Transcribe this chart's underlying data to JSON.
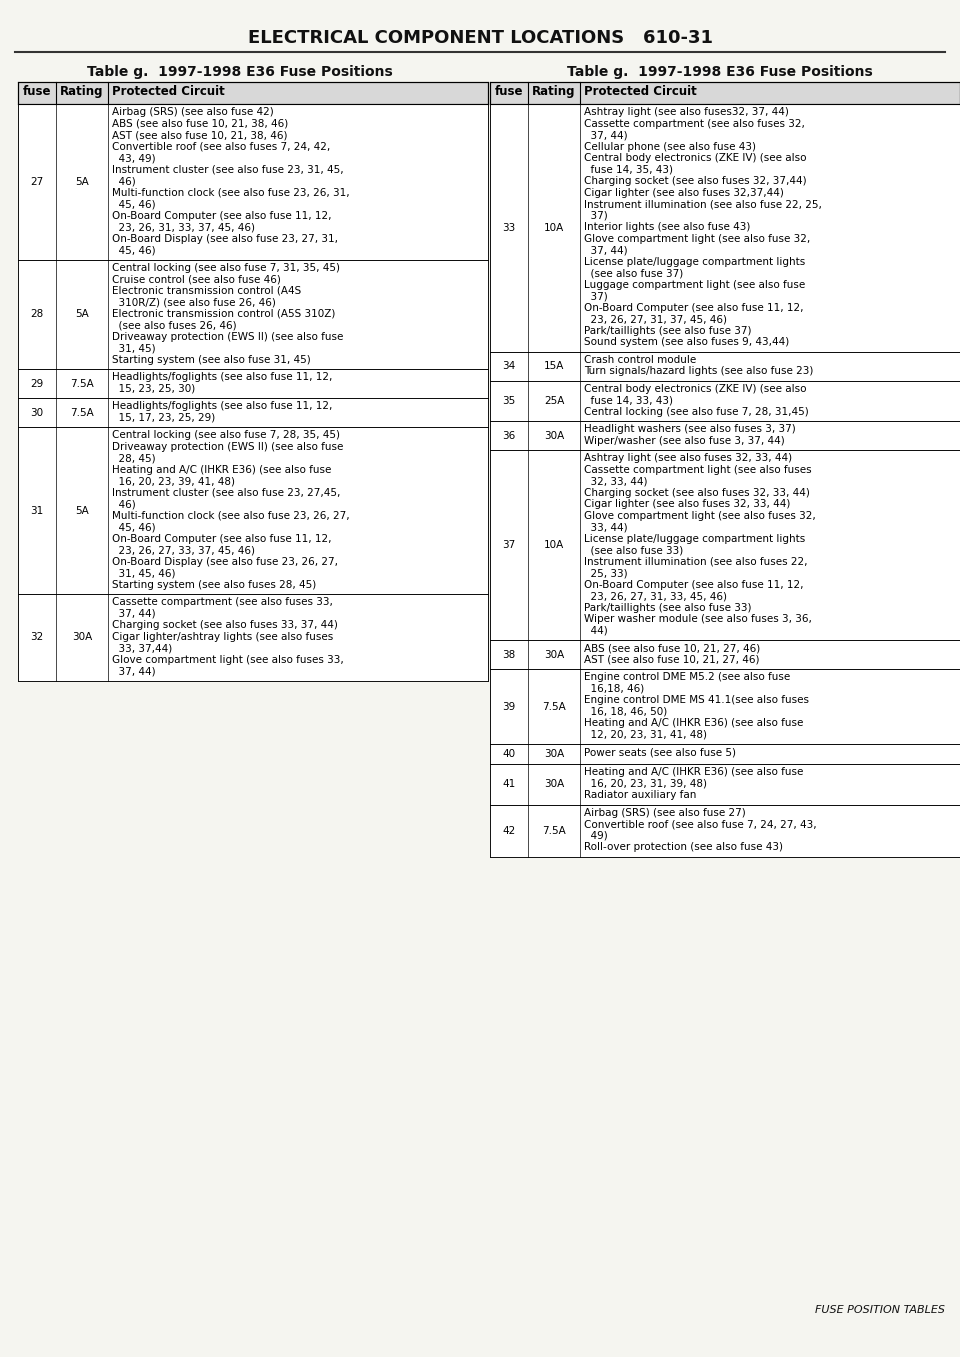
{
  "page_title": "ELECTRICAL COMPONENT LOCATIONS   610-31",
  "footer": "FUSE POSITION TABLES",
  "table_title": "Table g.  1997-1998 E36 Fuse Positions",
  "left_table": {
    "headers": [
      "fuse",
      "Rating",
      "Protected Circuit"
    ],
    "rows": [
      {
        "fuse": "27",
        "rating": "5A",
        "circuit": "Airbag (SRS) (see also fuse 42)\nABS (see also fuse 10, 21, 38, 46)\nAST (see also fuse 10, 21, 38, 46)\nConvertible roof (see also fuses 7, 24, 42,\n  43, 49)\nInstrument cluster (see also fuse 23, 31, 45,\n  46)\nMulti-function clock (see also fuse 23, 26, 31,\n  45, 46)\nOn-Board Computer (see also fuse 11, 12,\n  23, 26, 31, 33, 37, 45, 46)\nOn-Board Display (see also fuse 23, 27, 31,\n  45, 46)"
      },
      {
        "fuse": "28",
        "rating": "5A",
        "circuit": "Central locking (see also fuse 7, 31, 35, 45)\nCruise control (see also fuse 46)\nElectronic transmission control (A4S\n  310R/Z) (see also fuse 26, 46)\nElectronic transmission control (A5S 310Z)\n  (see also fuses 26, 46)\nDriveaway protection (EWS II) (see also fuse\n  31, 45)\nStarting system (see also fuse 31, 45)"
      },
      {
        "fuse": "29",
        "rating": "7.5A",
        "circuit": "Headlights/foglights (see also fuse 11, 12,\n  15, 23, 25, 30)"
      },
      {
        "fuse": "30",
        "rating": "7.5A",
        "circuit": "Headlights/foglights (see also fuse 11, 12,\n  15, 17, 23, 25, 29)"
      },
      {
        "fuse": "31",
        "rating": "5A",
        "circuit": "Central locking (see also fuse 7, 28, 35, 45)\nDriveaway protection (EWS II) (see also fuse\n  28, 45)\nHeating and A/C (IHKR E36) (see also fuse\n  16, 20, 23, 39, 41, 48)\nInstrument cluster (see also fuse 23, 27,45,\n  46)\nMulti-function clock (see also fuse 23, 26, 27,\n  45, 46)\nOn-Board Computer (see also fuse 11, 12,\n  23, 26, 27, 33, 37, 45, 46)\nOn-Board Display (see also fuse 23, 26, 27,\n  31, 45, 46)\nStarting system (see also fuses 28, 45)"
      },
      {
        "fuse": "32",
        "rating": "30A",
        "circuit": "Cassette compartment (see also fuses 33,\n  37, 44)\nCharging socket (see also fuses 33, 37, 44)\nCigar lighter/ashtray lights (see also fuses\n  33, 37,44)\nGlove compartment light (see also fuses 33,\n  37, 44)"
      }
    ]
  },
  "right_table": {
    "headers": [
      "fuse",
      "Rating",
      "Protected Circuit"
    ],
    "rows": [
      {
        "fuse": "33",
        "rating": "10A",
        "circuit": "Ashtray light (see also fuses32, 37, 44)\nCassette compartment (see also fuses 32,\n  37, 44)\nCellular phone (see also fuse 43)\nCentral body electronics (ZKE IV) (see also\n  fuse 14, 35, 43)\nCharging socket (see also fuses 32, 37,44)\nCigar lighter (see also fuses 32,37,44)\nInstrument illumination (see also fuse 22, 25,\n  37)\nInterior lights (see also fuse 43)\nGlove compartment light (see also fuse 32,\n  37, 44)\nLicense plate/luggage compartment lights\n  (see also fuse 37)\nLuggage compartment light (see also fuse\n  37)\nOn-Board Computer (see also fuse 11, 12,\n  23, 26, 27, 31, 37, 45, 46)\nPark/taillights (see also fuse 37)\nSound system (see also fuses 9, 43,44)"
      },
      {
        "fuse": "34",
        "rating": "15A",
        "circuit": "Crash control module\nTurn signals/hazard lights (see also fuse 23)"
      },
      {
        "fuse": "35",
        "rating": "25A",
        "circuit": "Central body electronics (ZKE IV) (see also\n  fuse 14, 33, 43)\nCentral locking (see also fuse 7, 28, 31,45)"
      },
      {
        "fuse": "36",
        "rating": "30A",
        "circuit": "Headlight washers (see also fuses 3, 37)\nWiper/washer (see also fuse 3, 37, 44)"
      },
      {
        "fuse": "37",
        "rating": "10A",
        "circuit": "Ashtray light (see also fuses 32, 33, 44)\nCassette compartment light (see also fuses\n  32, 33, 44)\nCharging socket (see also fuses 32, 33, 44)\nCigar lighter (see also fuses 32, 33, 44)\nGlove compartment light (see also fuses 32,\n  33, 44)\nLicense plate/luggage compartment lights\n  (see also fuse 33)\nInstrument illumination (see also fuses 22,\n  25, 33)\nOn-Board Computer (see also fuse 11, 12,\n  23, 26, 27, 31, 33, 45, 46)\nPark/taillights (see also fuse 33)\nWiper washer module (see also fuses 3, 36,\n  44)"
      },
      {
        "fuse": "38",
        "rating": "30A",
        "circuit": "ABS (see also fuse 10, 21, 27, 46)\nAST (see also fuse 10, 21, 27, 46)"
      },
      {
        "fuse": "39",
        "rating": "7.5A",
        "circuit": "Engine control DME M5.2 (see also fuse\n  16,18, 46)\nEngine control DME MS 41.1(see also fuses\n  16, 18, 46, 50)\nHeating and A/C (IHKR E36) (see also fuse\n  12, 20, 23, 31, 41, 48)"
      },
      {
        "fuse": "40",
        "rating": "30A",
        "circuit": "Power seats (see also fuse 5)"
      },
      {
        "fuse": "41",
        "rating": "30A",
        "circuit": "Heating and A/C (IHKR E36) (see also fuse\n  16, 20, 23, 31, 39, 48)\nRadiator auxiliary fan"
      },
      {
        "fuse": "42",
        "rating": "7.5A",
        "circuit": "Airbag (SRS) (see also fuse 27)\nConvertible roof (see also fuse 7, 24, 27, 43,\n  49)\nRoll-over protection (see also fuse 43)"
      }
    ]
  },
  "bg_color": "#f5f5f0",
  "table_bg": "#ffffff",
  "header_bg": "#e8e8e8",
  "border_color": "#000000",
  "text_color": "#000000"
}
